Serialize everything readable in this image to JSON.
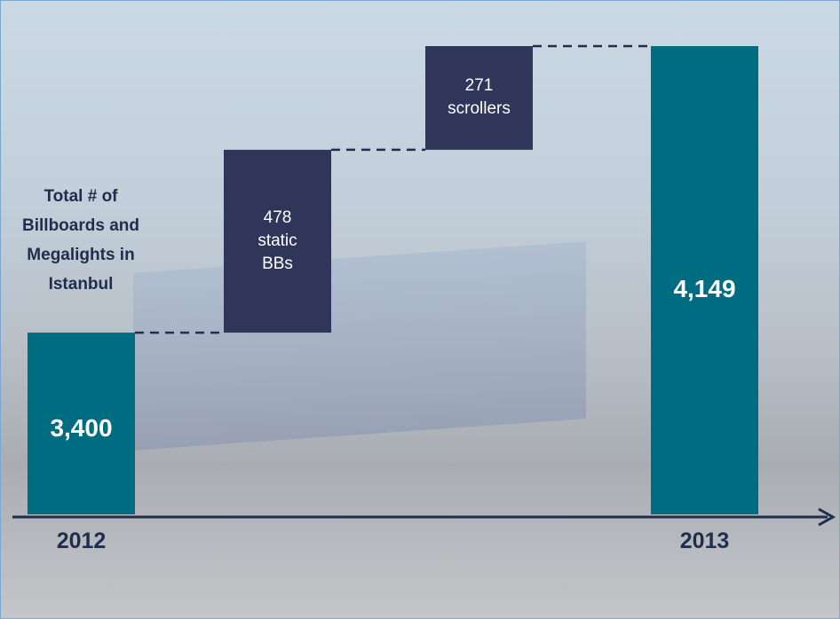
{
  "chart_data": {
    "type": "waterfall",
    "annotation": "Total # of Billboards and Megalights in Istanbul",
    "categories": [
      "2012",
      null,
      null,
      "2013"
    ],
    "values": [
      3400,
      478,
      271,
      4149
    ],
    "value_labels": [
      "3,400",
      "478",
      "271",
      "4,149"
    ],
    "descriptions": [
      null,
      "static BBs",
      "scrollers",
      null
    ],
    "colors": [
      "#006c82",
      "#2f3659",
      "#2f3659",
      "#006c82"
    ],
    "ylim": [
      2925,
      4200
    ]
  }
}
